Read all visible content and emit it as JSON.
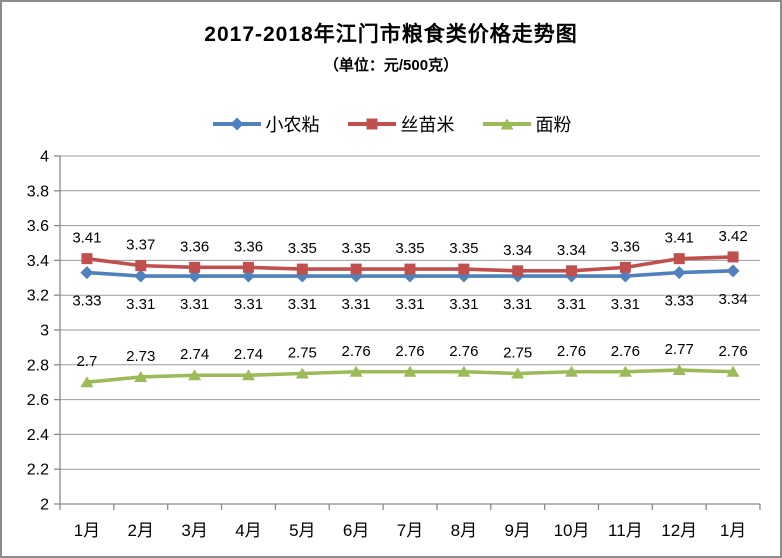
{
  "chart_data": {
    "type": "line",
    "title": "2017-2018年江门市粮食类价格走势图",
    "subtitle": "（单位：元/500克）",
    "categories": [
      "1月",
      "2月",
      "3月",
      "4月",
      "5月",
      "6月",
      "7月",
      "8月",
      "9月",
      "10月",
      "11月",
      "12月",
      "1月"
    ],
    "ylim": [
      2,
      4
    ],
    "ytick_step": 0.2,
    "ytick_labels": [
      "2",
      "2.2",
      "2.4",
      "2.6",
      "2.8",
      "3",
      "3.2",
      "3.4",
      "3.6",
      "3.8",
      "4"
    ],
    "grid": true,
    "legend_position": "top",
    "colors": {
      "grid": "#9b9b9b",
      "axis": "#8a8a8a",
      "label_text": "#000000",
      "series_blue": "#4F81BD",
      "series_red": "#C0504D",
      "series_green": "#9BBB59"
    },
    "series": [
      {
        "name": "小农粘",
        "color": "#4F81BD",
        "marker": "diamond",
        "label_position": "below",
        "values": [
          3.33,
          3.31,
          3.31,
          3.31,
          3.31,
          3.31,
          3.31,
          3.31,
          3.31,
          3.31,
          3.31,
          3.33,
          3.34
        ]
      },
      {
        "name": "丝苗米",
        "color": "#C0504D",
        "marker": "square",
        "label_position": "above",
        "values": [
          3.41,
          3.37,
          3.36,
          3.36,
          3.35,
          3.35,
          3.35,
          3.35,
          3.34,
          3.34,
          3.36,
          3.41,
          3.42
        ]
      },
      {
        "name": "面粉",
        "color": "#9BBB59",
        "marker": "triangle",
        "label_position": "above",
        "values": [
          2.7,
          2.73,
          2.74,
          2.74,
          2.75,
          2.76,
          2.76,
          2.76,
          2.75,
          2.76,
          2.76,
          2.77,
          2.76
        ]
      }
    ]
  }
}
